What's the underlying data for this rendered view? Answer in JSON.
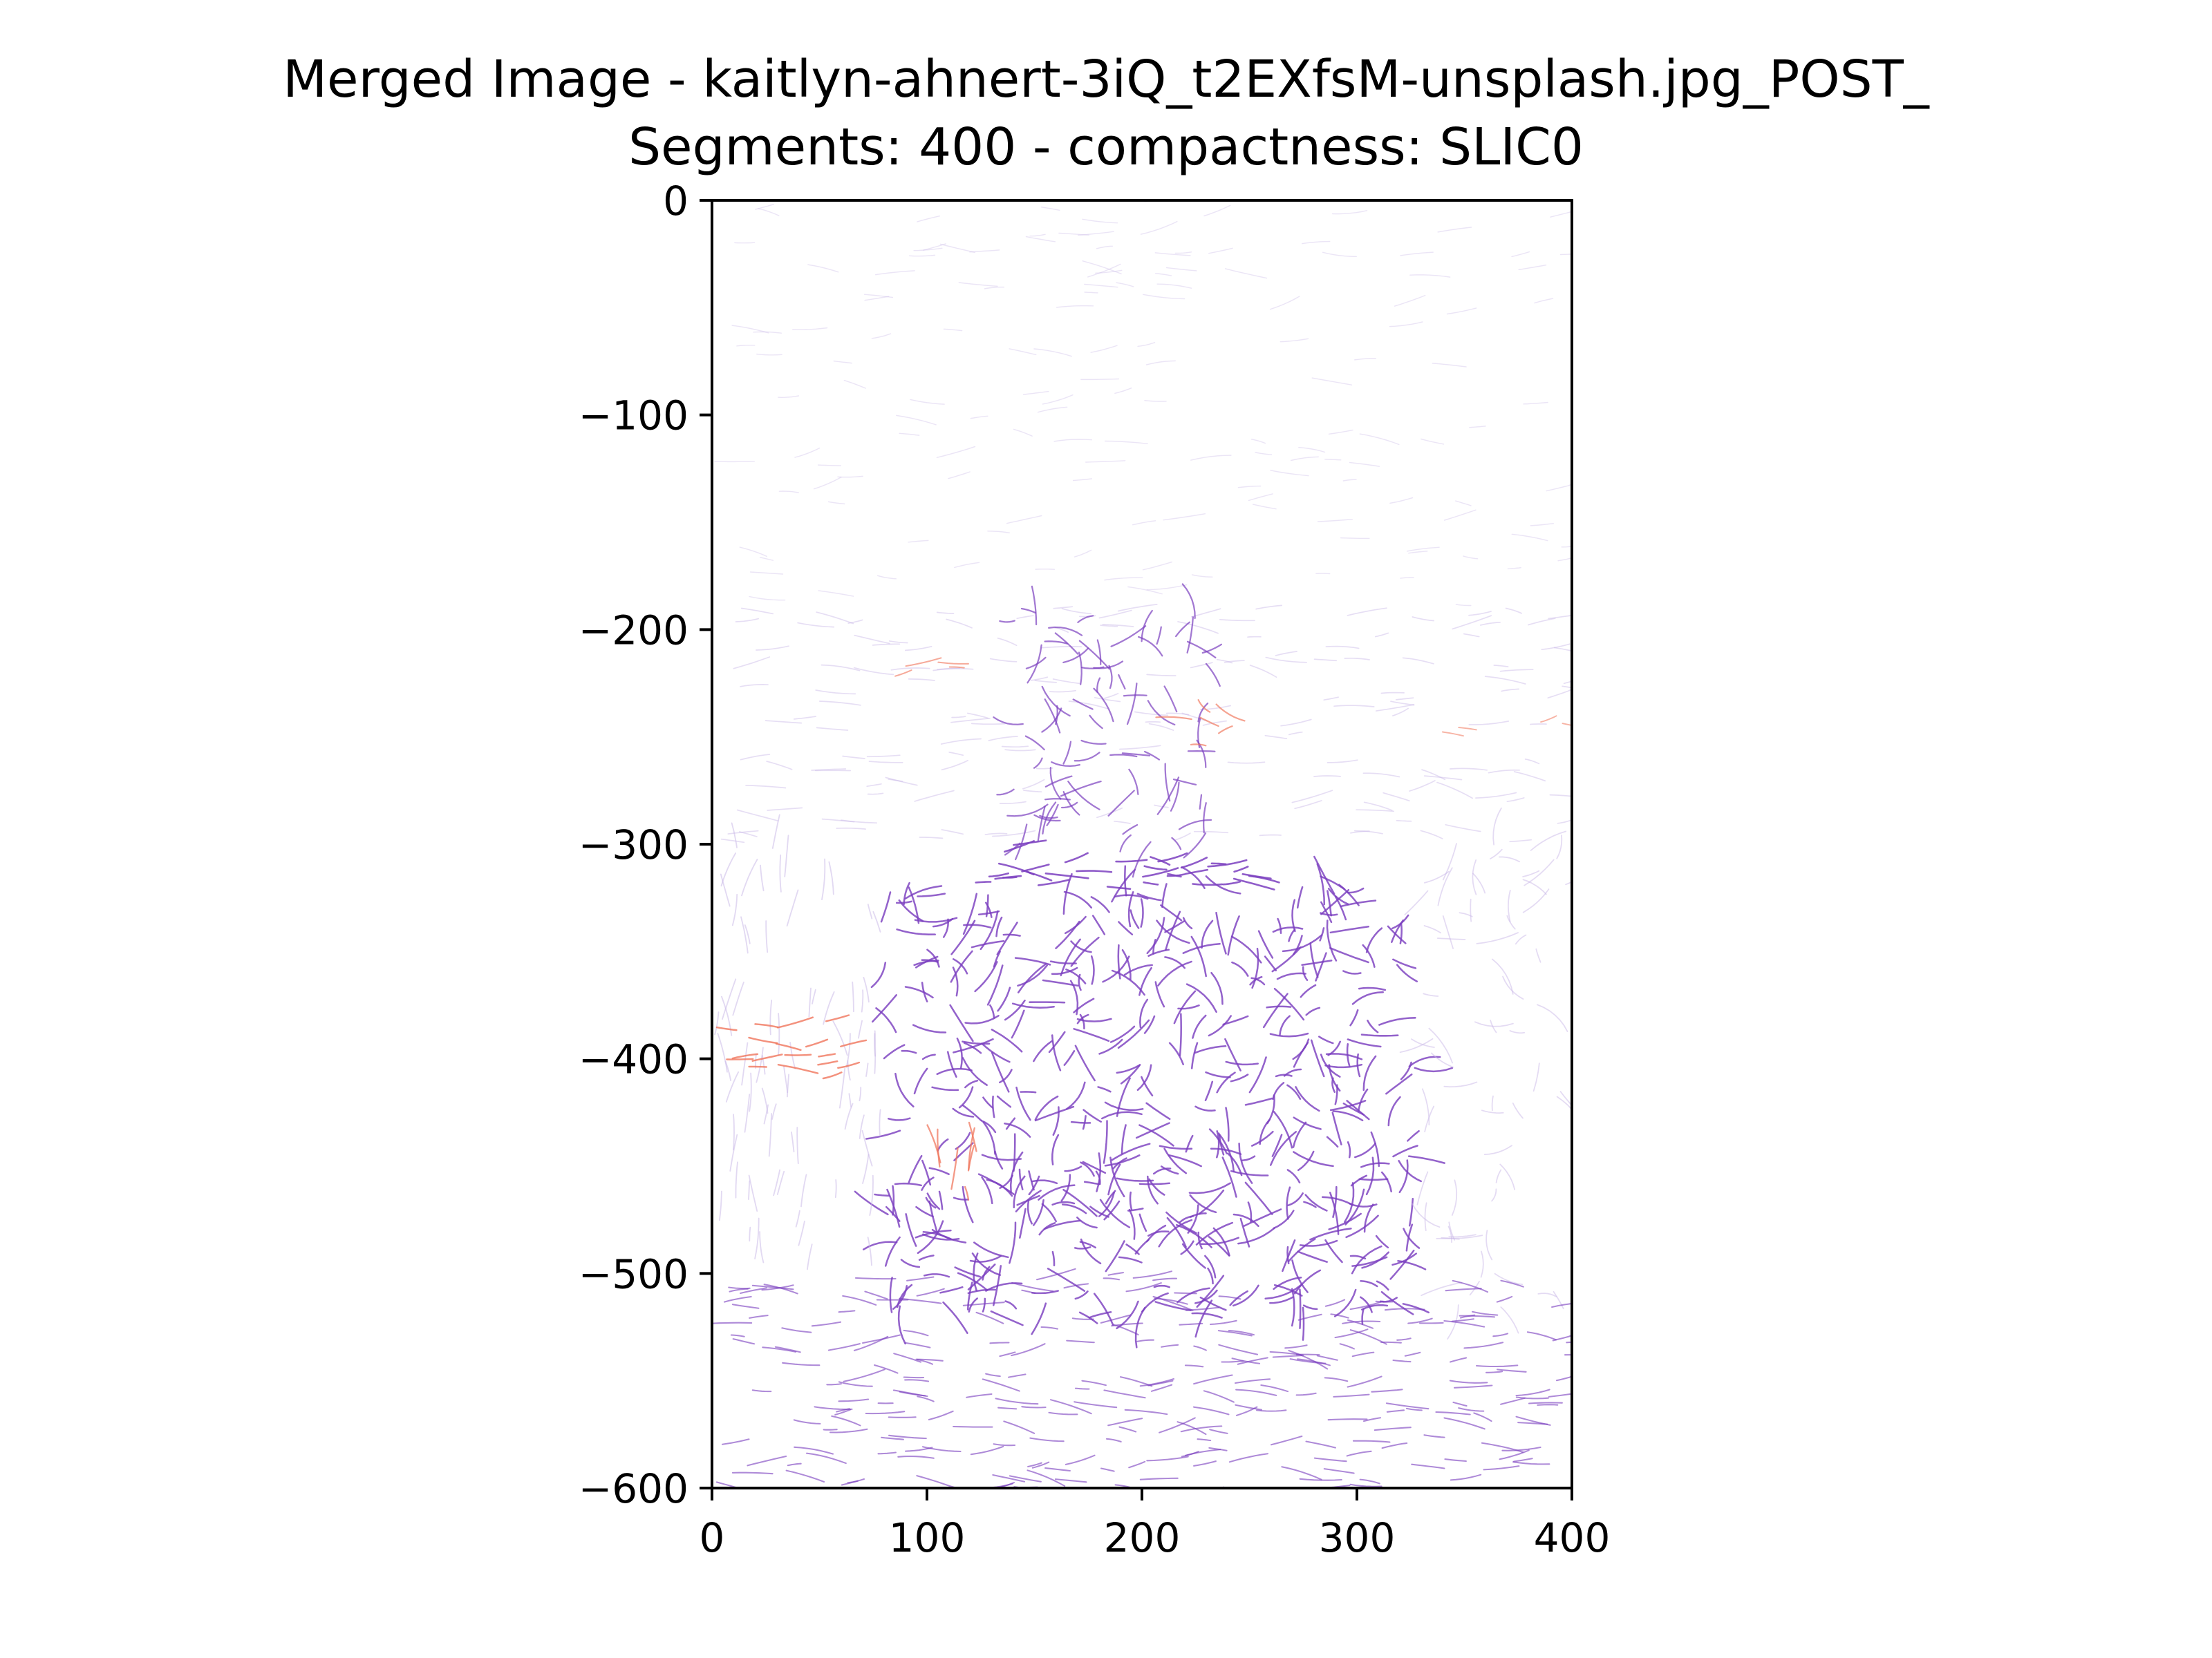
{
  "chart_data": {
    "type": "streamplot",
    "title_lines": [
      "Merged Image - kaitlyn-ahnert-3iQ_t2EXfsM-unsplash.jpg_POST_",
      "Segments: 400 - compactness: SLIC0"
    ],
    "xlabel": "",
    "ylabel": "",
    "xlim": [
      0,
      400
    ],
    "ylim": [
      -600,
      0
    ],
    "xticks": [
      0,
      100,
      200,
      300,
      400
    ],
    "xtick_labels": [
      "0",
      "100",
      "200",
      "300",
      "400"
    ],
    "yticks": [
      0,
      -100,
      -200,
      -300,
      -400,
      -500,
      -600
    ],
    "ytick_labels": [
      "0",
      "−100",
      "−200",
      "−300",
      "−400",
      "−500",
      "−600"
    ],
    "grid": false,
    "legend": "none",
    "colors": {
      "dense_stroke": "#7b3fbf",
      "light_stroke": "#c8b6e6",
      "accent_stroke": "#f0745a"
    },
    "regions": [
      {
        "label": "sky-faint",
        "x": [
          0,
          400
        ],
        "y": [
          -190,
          0
        ],
        "density": 0.18,
        "color": "light_stroke",
        "pattern": "horizontal"
      },
      {
        "label": "mid-band",
        "x": [
          0,
          400
        ],
        "y": [
          -300,
          -190
        ],
        "density": 0.35,
        "color": "light_stroke",
        "pattern": "horizontal"
      },
      {
        "label": "figure-top",
        "x": [
          140,
          230
        ],
        "y": [
          -300,
          -190
        ],
        "density": 0.75,
        "color": "dense_stroke",
        "pattern": "swirl"
      },
      {
        "label": "figure-band",
        "x": [
          120,
          265
        ],
        "y": [
          -320,
          -300
        ],
        "density": 1.0,
        "color": "dense_stroke",
        "pattern": "horizontal"
      },
      {
        "label": "figure-body",
        "x": [
          80,
          330
        ],
        "y": [
          -520,
          -320
        ],
        "density": 0.95,
        "color": "dense_stroke",
        "pattern": "swirl"
      },
      {
        "label": "left-side",
        "x": [
          0,
          80
        ],
        "y": [
          -500,
          -300
        ],
        "density": 0.45,
        "color": "light_stroke",
        "pattern": "vertical"
      },
      {
        "label": "right-side",
        "x": [
          330,
          400
        ],
        "y": [
          -520,
          -300
        ],
        "density": 0.4,
        "color": "light_stroke",
        "pattern": "swirl"
      },
      {
        "label": "ground",
        "x": [
          0,
          400
        ],
        "y": [
          -600,
          -500
        ],
        "density": 0.6,
        "color": "dense_stroke",
        "pattern": "horizontal"
      },
      {
        "label": "accent-left",
        "x": [
          0,
          60
        ],
        "y": [
          -410,
          -380
        ],
        "density": 0.9,
        "color": "accent_stroke",
        "pattern": "horizontal"
      },
      {
        "label": "accent-line-220",
        "x": [
          60,
          140
        ],
        "y": [
          -222,
          -214
        ],
        "density": 0.6,
        "color": "accent_stroke",
        "pattern": "horizontal"
      },
      {
        "label": "accent-small",
        "x": [
          100,
          125
        ],
        "y": [
          -470,
          -440
        ],
        "density": 0.8,
        "color": "accent_stroke",
        "pattern": "vertical"
      },
      {
        "label": "accent-diag",
        "x": [
          220,
          250
        ],
        "y": [
          -260,
          -235
        ],
        "density": 0.7,
        "color": "accent_stroke",
        "pattern": "swirl"
      },
      {
        "label": "accent-right",
        "x": [
          330,
          400
        ],
        "y": [
          -250,
          -240
        ],
        "density": 0.5,
        "color": "accent_stroke",
        "pattern": "horizontal"
      }
    ]
  }
}
